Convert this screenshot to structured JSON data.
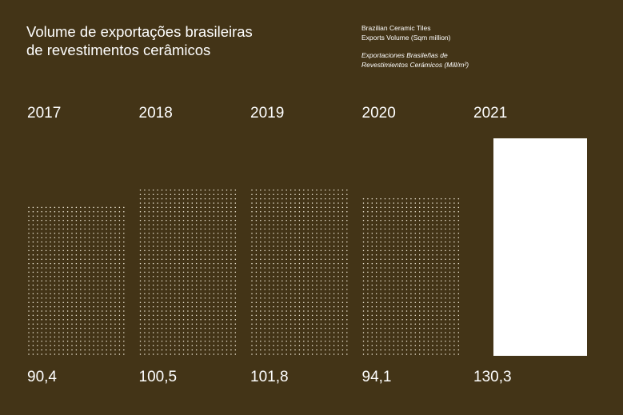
{
  "header": {
    "title_line1": "Volume de exportações brasileiras",
    "title_line2": "de revestimentos cerâmicos",
    "subtitle_en_line1": "Brazilian Ceramic Tiles",
    "subtitle_en_line2": "Exports Volume (Sqm million)",
    "subtitle_es_line1": "Exportaciones Brasileñas de",
    "subtitle_es_line2": "Revestimientos Cerámicos (Mill/m²)"
  },
  "colors": {
    "background": "#433417",
    "text": "#ffffff",
    "dots": "#f1ead8",
    "highlight_bar": "#ffffff"
  },
  "chart_data": {
    "type": "bar",
    "categories": [
      "2017",
      "2018",
      "2019",
      "2020",
      "2021"
    ],
    "values": [
      90.4,
      100.5,
      101.8,
      94.1,
      130.3
    ],
    "value_labels": [
      "90,4",
      "100,5",
      "101,8",
      "94,1",
      "130,3"
    ],
    "highlight": "2021",
    "title": "Volume de exportações brasileiras de revestimentos cerâmicos",
    "ylim": [
      0,
      130.3
    ],
    "grid": false,
    "legend": "none"
  }
}
